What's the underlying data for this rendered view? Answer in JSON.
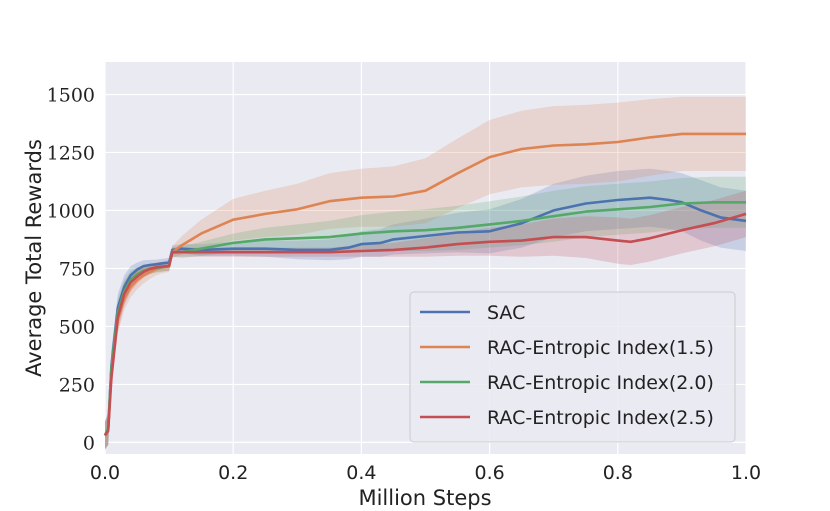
{
  "chart_data": {
    "type": "line",
    "title": "",
    "xlabel": "Million Steps",
    "ylabel": "Average Total Rewards",
    "xlim": [
      0,
      1.0
    ],
    "ylim": [
      -50,
      1640
    ],
    "grid": true,
    "legend_position": "bottom-right",
    "x_ticks": [
      0.0,
      0.2,
      0.4,
      0.6,
      0.8,
      1.0
    ],
    "x_tick_labels": [
      "0.0",
      "0.2",
      "0.4",
      "0.6",
      "0.8",
      "1.0"
    ],
    "y_ticks": [
      0,
      250,
      500,
      750,
      1000,
      1250,
      1500
    ],
    "y_tick_labels": [
      "0",
      "250",
      "500",
      "750",
      "1000",
      "1250",
      "1500"
    ],
    "series": [
      {
        "name": "SAC",
        "color": "#4c72b0",
        "x": [
          0,
          0.005,
          0.01,
          0.02,
          0.03,
          0.04,
          0.05,
          0.06,
          0.07,
          0.08,
          0.09,
          0.1,
          0.105,
          0.12,
          0.15,
          0.2,
          0.25,
          0.3,
          0.35,
          0.38,
          0.4,
          0.43,
          0.45,
          0.5,
          0.55,
          0.6,
          0.65,
          0.7,
          0.75,
          0.8,
          0.85,
          0.88,
          0.9,
          0.93,
          0.96,
          1.0
        ],
        "y": [
          30,
          60,
          330,
          580,
          670,
          720,
          745,
          760,
          765,
          768,
          772,
          775,
          830,
          835,
          830,
          835,
          835,
          830,
          830,
          840,
          855,
          860,
          875,
          890,
          905,
          910,
          945,
          1000,
          1030,
          1045,
          1055,
          1045,
          1035,
          1000,
          970,
          955
        ],
        "band": [
          60,
          70,
          70,
          60,
          50,
          40,
          30,
          25,
          22,
          20,
          20,
          20,
          20,
          20,
          25,
          30,
          35,
          40,
          45,
          50,
          55,
          60,
          65,
          75,
          85,
          95,
          105,
          115,
          120,
          125,
          125,
          125,
          125,
          130,
          130,
          130
        ]
      },
      {
        "name": "RAC-Entropic Index(1.5)",
        "color": "#dd8452",
        "x": [
          0,
          0.005,
          0.01,
          0.02,
          0.03,
          0.04,
          0.05,
          0.06,
          0.07,
          0.08,
          0.09,
          0.1,
          0.105,
          0.12,
          0.15,
          0.2,
          0.25,
          0.3,
          0.35,
          0.4,
          0.45,
          0.5,
          0.55,
          0.6,
          0.65,
          0.7,
          0.75,
          0.8,
          0.85,
          0.9,
          0.95,
          1.0
        ],
        "y": [
          30,
          60,
          300,
          530,
          620,
          670,
          700,
          720,
          735,
          748,
          755,
          760,
          820,
          850,
          900,
          960,
          985,
          1005,
          1040,
          1055,
          1060,
          1085,
          1160,
          1230,
          1265,
          1280,
          1285,
          1295,
          1315,
          1330,
          1330,
          1330
        ],
        "band": [
          60,
          70,
          70,
          60,
          50,
          45,
          40,
          35,
          30,
          28,
          25,
          25,
          25,
          40,
          60,
          90,
          100,
          110,
          120,
          125,
          130,
          140,
          150,
          160,
          165,
          170,
          170,
          170,
          165,
          160,
          160,
          160
        ]
      },
      {
        "name": "RAC-Entropic Index(2.0)",
        "color": "#55a868",
        "x": [
          0,
          0.005,
          0.01,
          0.02,
          0.03,
          0.04,
          0.05,
          0.06,
          0.07,
          0.08,
          0.09,
          0.1,
          0.105,
          0.12,
          0.15,
          0.2,
          0.25,
          0.3,
          0.35,
          0.4,
          0.45,
          0.5,
          0.55,
          0.6,
          0.65,
          0.7,
          0.75,
          0.8,
          0.85,
          0.9,
          0.95,
          1.0
        ],
        "y": [
          30,
          60,
          320,
          560,
          650,
          700,
          725,
          740,
          748,
          752,
          756,
          760,
          820,
          820,
          835,
          860,
          875,
          880,
          885,
          900,
          910,
          915,
          925,
          940,
          955,
          975,
          995,
          1005,
          1015,
          1030,
          1035,
          1035
        ],
        "band": [
          60,
          70,
          70,
          60,
          50,
          40,
          30,
          25,
          22,
          20,
          20,
          20,
          20,
          25,
          30,
          40,
          50,
          60,
          70,
          80,
          85,
          90,
          95,
          100,
          105,
          110,
          110,
          110,
          110,
          110,
          110,
          110
        ]
      },
      {
        "name": "RAC-Entropic Index(2.5)",
        "color": "#c44e52",
        "x": [
          0,
          0.005,
          0.01,
          0.02,
          0.03,
          0.04,
          0.05,
          0.06,
          0.07,
          0.08,
          0.09,
          0.1,
          0.105,
          0.12,
          0.15,
          0.2,
          0.25,
          0.3,
          0.35,
          0.4,
          0.45,
          0.5,
          0.55,
          0.6,
          0.65,
          0.7,
          0.75,
          0.8,
          0.82,
          0.85,
          0.9,
          0.95,
          1.0
        ],
        "y": [
          30,
          50,
          280,
          540,
          640,
          690,
          715,
          735,
          748,
          755,
          758,
          760,
          820,
          820,
          820,
          820,
          820,
          820,
          820,
          825,
          830,
          840,
          855,
          865,
          870,
          885,
          885,
          870,
          865,
          880,
          915,
          945,
          985
        ],
        "band": [
          60,
          60,
          60,
          60,
          50,
          40,
          30,
          25,
          22,
          20,
          20,
          20,
          20,
          20,
          20,
          20,
          20,
          20,
          20,
          25,
          30,
          40,
          50,
          60,
          70,
          80,
          90,
          100,
          100,
          100,
          100,
          100,
          100
        ]
      }
    ]
  }
}
